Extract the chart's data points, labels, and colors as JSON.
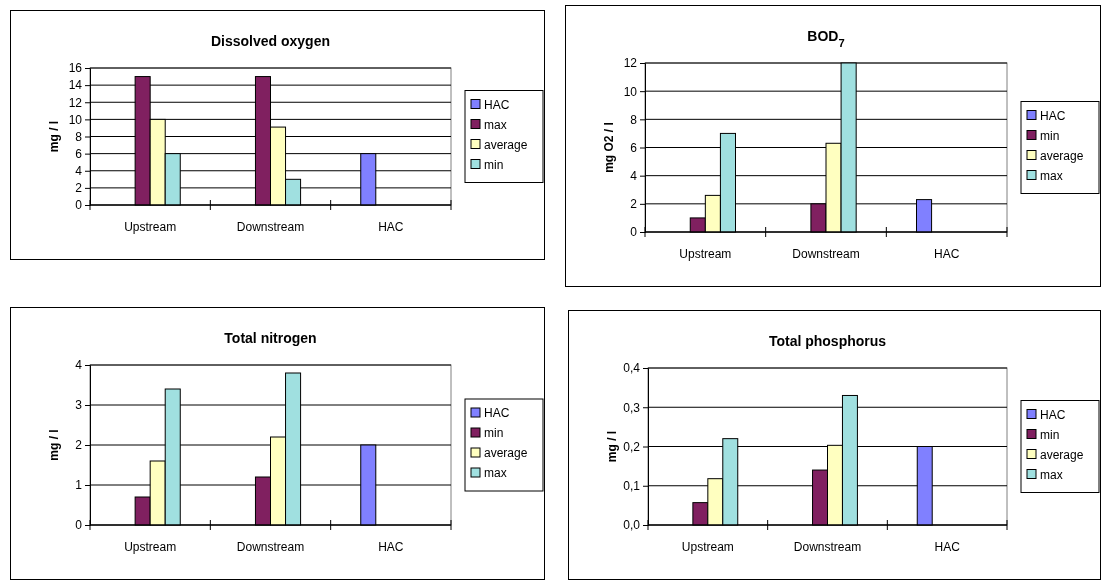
{
  "chart_data": [
    {
      "type": "bar",
      "title": "Dissolved oxygen",
      "ylabel": "mg / l",
      "categories": [
        "Upstream",
        "Downstream",
        "HAC"
      ],
      "series": [
        {
          "name": "HAC",
          "color": "#8080ff",
          "values": [
            null,
            null,
            6
          ]
        },
        {
          "name": "max",
          "color": "#802060",
          "values": [
            15,
            15,
            null
          ]
        },
        {
          "name": "average",
          "color": "#ffffc0",
          "values": [
            10,
            9.1,
            null
          ]
        },
        {
          "name": "min",
          "color": "#a0e0e0",
          "values": [
            6,
            3,
            null
          ]
        }
      ],
      "ylim": [
        0,
        16
      ],
      "yticks": [
        0,
        2,
        4,
        6,
        8,
        10,
        12,
        14,
        16
      ],
      "grid": "y",
      "legend": "right"
    },
    {
      "type": "bar",
      "title": "BOD$_{7}$",
      "ylabel": "mg O2 / l",
      "categories": [
        "Upstream",
        "Downstream",
        "HAC"
      ],
      "series": [
        {
          "name": "HAC",
          "color": "#8080ff",
          "values": [
            null,
            null,
            2.3
          ]
        },
        {
          "name": "min",
          "color": "#802060",
          "values": [
            1,
            2,
            null
          ]
        },
        {
          "name": "average",
          "color": "#ffffc0",
          "values": [
            2.6,
            6.3,
            null
          ]
        },
        {
          "name": "max",
          "color": "#a0e0e0",
          "values": [
            7,
            12,
            null
          ]
        }
      ],
      "ylim": [
        0,
        12
      ],
      "yticks": [
        0,
        2,
        4,
        6,
        8,
        10,
        12
      ],
      "grid": "y",
      "legend": "right"
    },
    {
      "type": "bar",
      "title": "Total nitrogen",
      "ylabel": "mg / l",
      "categories": [
        "Upstream",
        "Downstream",
        "HAC"
      ],
      "series": [
        {
          "name": "HAC",
          "color": "#8080ff",
          "values": [
            null,
            null,
            2
          ]
        },
        {
          "name": "min",
          "color": "#802060",
          "values": [
            0.7,
            1.2,
            null
          ]
        },
        {
          "name": "average",
          "color": "#ffffc0",
          "values": [
            1.6,
            2.2,
            null
          ]
        },
        {
          "name": "max",
          "color": "#a0e0e0",
          "values": [
            3.4,
            3.8,
            null
          ]
        }
      ],
      "ylim": [
        0,
        4
      ],
      "yticks": [
        0,
        1,
        2,
        3,
        4
      ],
      "grid": "y",
      "legend": "right"
    },
    {
      "type": "bar",
      "title": "Total phosphorus",
      "ylabel": "mg / l",
      "categories": [
        "Upstream",
        "Downstream",
        "HAC"
      ],
      "series": [
        {
          "name": "HAC",
          "color": "#8080ff",
          "values": [
            null,
            null,
            0.2
          ]
        },
        {
          "name": "min",
          "color": "#802060",
          "values": [
            0.057,
            0.14,
            null
          ]
        },
        {
          "name": "average",
          "color": "#ffffc0",
          "values": [
            0.118,
            0.203,
            null
          ]
        },
        {
          "name": "max",
          "color": "#a0e0e0",
          "values": [
            0.22,
            0.33,
            null
          ]
        }
      ],
      "ylim": [
        0,
        0.4
      ],
      "yticks": [
        {
          "value": 0,
          "label": "0,0"
        },
        {
          "value": 0.1,
          "label": "0,1"
        },
        {
          "value": 0.2,
          "label": "0,2"
        },
        {
          "value": 0.3,
          "label": "0,3"
        },
        {
          "value": 0.4,
          "label": "0,4"
        }
      ],
      "grid": "y",
      "legend": "right"
    }
  ]
}
